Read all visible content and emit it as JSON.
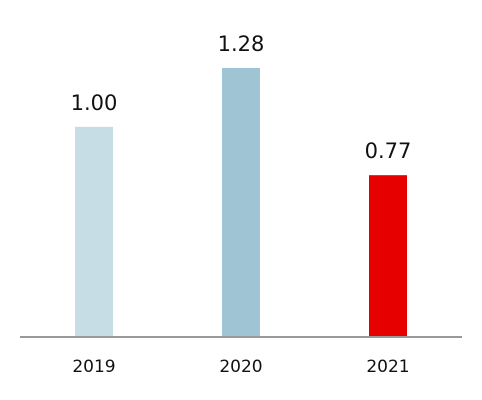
{
  "chart_data": {
    "type": "bar",
    "categories": [
      "2019",
      "2020",
      "2021"
    ],
    "values": [
      1.0,
      1.28,
      0.77
    ],
    "value_labels": [
      "1.00",
      "1.28",
      "0.77"
    ],
    "bar_colors": [
      "#c6dde6",
      "#9fc4d4",
      "#e60000"
    ],
    "axis_color": "#999999",
    "title": "",
    "xlabel": "",
    "ylabel": "",
    "ylim": [
      0,
      1.28
    ],
    "grid": false,
    "legend": "none"
  }
}
